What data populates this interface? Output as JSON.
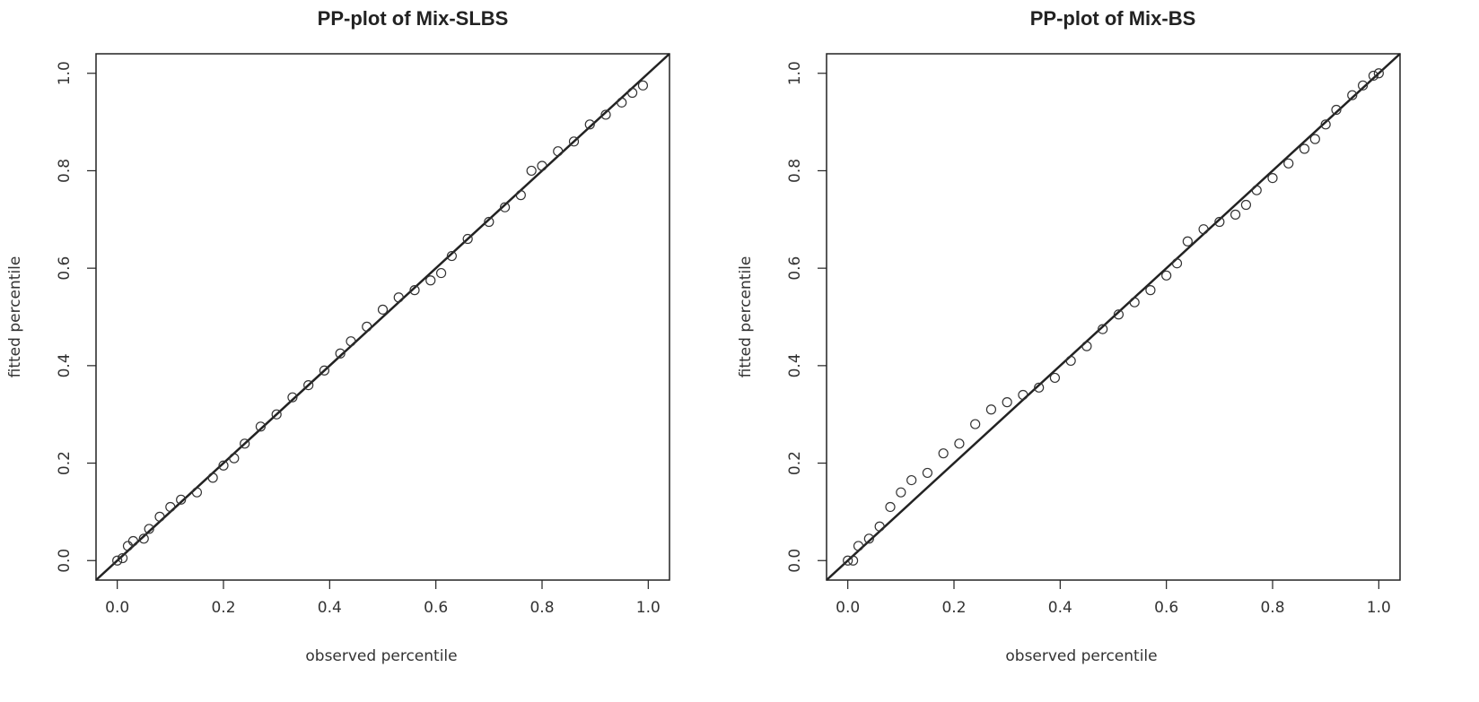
{
  "chart_data": [
    {
      "type": "scatter",
      "title": "PP-plot of Mix-SLBS",
      "xlabel": "observed percentile",
      "ylabel": "fitted percentile",
      "xlim": [
        -0.04,
        1.04
      ],
      "ylim": [
        -0.04,
        1.04
      ],
      "xticks": [
        "0.0",
        "0.2",
        "0.4",
        "0.6",
        "0.8",
        "1.0"
      ],
      "yticks": [
        "0.0",
        "0.2",
        "0.4",
        "0.6",
        "0.8",
        "1.0"
      ],
      "reference_line": "y = x",
      "grid": false,
      "points": [
        [
          0.0,
          0.0
        ],
        [
          0.01,
          0.005
        ],
        [
          0.02,
          0.03
        ],
        [
          0.03,
          0.04
        ],
        [
          0.05,
          0.045
        ],
        [
          0.06,
          0.065
        ],
        [
          0.08,
          0.09
        ],
        [
          0.1,
          0.11
        ],
        [
          0.12,
          0.125
        ],
        [
          0.15,
          0.14
        ],
        [
          0.18,
          0.17
        ],
        [
          0.2,
          0.195
        ],
        [
          0.22,
          0.21
        ],
        [
          0.24,
          0.24
        ],
        [
          0.27,
          0.275
        ],
        [
          0.3,
          0.3
        ],
        [
          0.33,
          0.335
        ],
        [
          0.36,
          0.36
        ],
        [
          0.39,
          0.39
        ],
        [
          0.42,
          0.425
        ],
        [
          0.44,
          0.45
        ],
        [
          0.47,
          0.48
        ],
        [
          0.5,
          0.515
        ],
        [
          0.53,
          0.54
        ],
        [
          0.56,
          0.555
        ],
        [
          0.59,
          0.575
        ],
        [
          0.61,
          0.59
        ],
        [
          0.63,
          0.625
        ],
        [
          0.66,
          0.66
        ],
        [
          0.7,
          0.695
        ],
        [
          0.73,
          0.725
        ],
        [
          0.76,
          0.75
        ],
        [
          0.78,
          0.8
        ],
        [
          0.8,
          0.81
        ],
        [
          0.83,
          0.84
        ],
        [
          0.86,
          0.86
        ],
        [
          0.89,
          0.895
        ],
        [
          0.92,
          0.915
        ],
        [
          0.95,
          0.94
        ],
        [
          0.97,
          0.96
        ],
        [
          0.99,
          0.975
        ]
      ]
    },
    {
      "type": "scatter",
      "title": "PP-plot of Mix-BS",
      "xlabel": "observed percentile",
      "ylabel": "fitted percentile",
      "xlim": [
        -0.04,
        1.04
      ],
      "ylim": [
        -0.04,
        1.04
      ],
      "xticks": [
        "0.0",
        "0.2",
        "0.4",
        "0.6",
        "0.8",
        "1.0"
      ],
      "yticks": [
        "0.0",
        "0.2",
        "0.4",
        "0.6",
        "0.8",
        "1.0"
      ],
      "reference_line": "y = x",
      "grid": false,
      "points": [
        [
          0.0,
          0.0
        ],
        [
          0.01,
          0.0
        ],
        [
          0.02,
          0.03
        ],
        [
          0.04,
          0.045
        ],
        [
          0.06,
          0.07
        ],
        [
          0.08,
          0.11
        ],
        [
          0.1,
          0.14
        ],
        [
          0.12,
          0.165
        ],
        [
          0.15,
          0.18
        ],
        [
          0.18,
          0.22
        ],
        [
          0.21,
          0.24
        ],
        [
          0.24,
          0.28
        ],
        [
          0.27,
          0.31
        ],
        [
          0.3,
          0.325
        ],
        [
          0.33,
          0.34
        ],
        [
          0.36,
          0.355
        ],
        [
          0.39,
          0.375
        ],
        [
          0.42,
          0.41
        ],
        [
          0.45,
          0.44
        ],
        [
          0.48,
          0.475
        ],
        [
          0.51,
          0.505
        ],
        [
          0.54,
          0.53
        ],
        [
          0.57,
          0.555
        ],
        [
          0.6,
          0.585
        ],
        [
          0.62,
          0.61
        ],
        [
          0.64,
          0.655
        ],
        [
          0.67,
          0.68
        ],
        [
          0.7,
          0.695
        ],
        [
          0.73,
          0.71
        ],
        [
          0.75,
          0.73
        ],
        [
          0.77,
          0.76
        ],
        [
          0.8,
          0.785
        ],
        [
          0.83,
          0.815
        ],
        [
          0.86,
          0.845
        ],
        [
          0.88,
          0.865
        ],
        [
          0.9,
          0.895
        ],
        [
          0.92,
          0.925
        ],
        [
          0.95,
          0.955
        ],
        [
          0.97,
          0.975
        ],
        [
          0.99,
          0.995
        ],
        [
          1.0,
          1.0
        ]
      ]
    }
  ]
}
